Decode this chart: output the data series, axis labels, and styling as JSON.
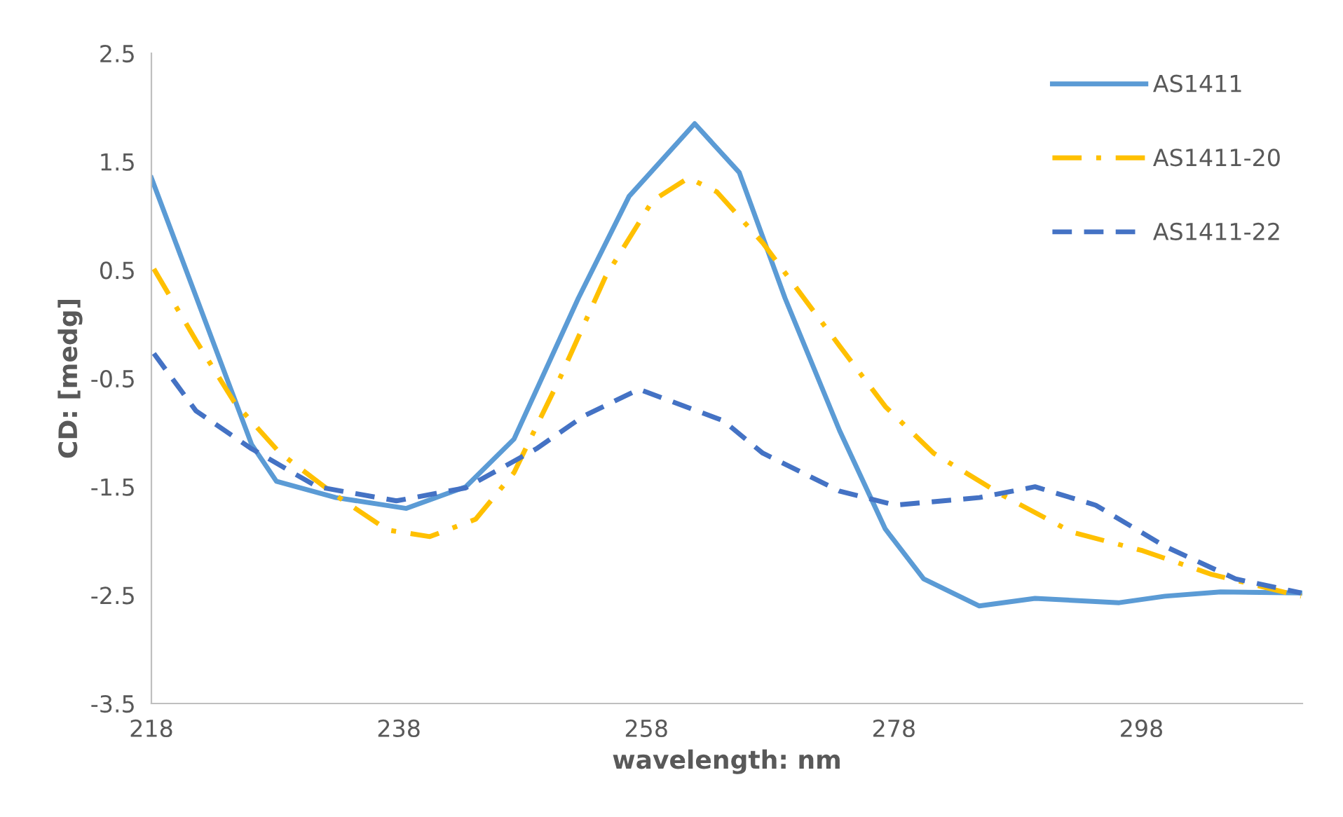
{
  "chart_data": {
    "type": "line",
    "xlabel": "wavelength: nm",
    "ylabel": "CD: [medg]",
    "xlim": [
      218,
      311
    ],
    "xticks": [
      218,
      238,
      258,
      278,
      298
    ],
    "ylim": [
      -3.5,
      2.5
    ],
    "yticks": [
      2.5,
      1.5,
      0.5,
      -0.5,
      -1.5,
      -2.5,
      -3.5
    ],
    "grid": false,
    "legend": "top right",
    "marker": "none",
    "series": [
      {
        "name": "AS1411",
        "color": "#5b9bd5",
        "line_style": "solid",
        "x": [
          218,
          226.1,
          228.1,
          232.9,
          238.6,
          243.4,
          247.3,
          252.5,
          256.6,
          261.9,
          265.5,
          269.2,
          273.6,
          277.3,
          280.4,
          284.9,
          289.4,
          296.2,
          299.9,
          304.4,
          310.9
        ],
        "values": [
          1.35,
          -1.11,
          -1.45,
          -1.6,
          -1.7,
          -1.5,
          -1.06,
          0.24,
          1.18,
          1.85,
          1.4,
          0.24,
          -0.98,
          -1.89,
          -2.35,
          -2.6,
          -2.53,
          -2.57,
          -2.51,
          -2.47,
          -2.48
        ]
      },
      {
        "name": "AS1411-20",
        "color": "#ffc000",
        "line_style": "dashdot",
        "x": [
          218.2,
          221.6,
          224.7,
          228.4,
          232.9,
          237.1,
          240.5,
          244.2,
          247.3,
          251,
          254.7,
          258.5,
          261.4,
          263.7,
          267.4,
          273.6,
          277.3,
          281.2,
          286.8,
          292.4,
          298.1,
          303.7,
          310.9
        ],
        "values": [
          0.51,
          -0.15,
          -0.72,
          -1.19,
          -1.58,
          -1.9,
          -1.96,
          -1.8,
          -1.37,
          -0.5,
          0.44,
          1.14,
          1.35,
          1.22,
          0.75,
          -0.2,
          -0.76,
          -1.19,
          -1.58,
          -1.92,
          -2.09,
          -2.31,
          -2.51
        ]
      },
      {
        "name": "AS1411-22",
        "color": "#4472c4",
        "line_style": "dashed",
        "x": [
          218.2,
          221.6,
          226.1,
          231.4,
          237.8,
          243.4,
          249.1,
          252.9,
          257.4,
          264.2,
          267.4,
          273.6,
          278.1,
          284.9,
          289.4,
          294.3,
          299.9,
          305.6,
          310.9
        ],
        "values": [
          -0.27,
          -0.8,
          -1.15,
          -1.5,
          -1.63,
          -1.51,
          -1.15,
          -0.85,
          -0.6,
          -0.89,
          -1.19,
          -1.54,
          -1.67,
          -1.6,
          -1.5,
          -1.67,
          -2.05,
          -2.35,
          -2.48
        ]
      }
    ]
  }
}
